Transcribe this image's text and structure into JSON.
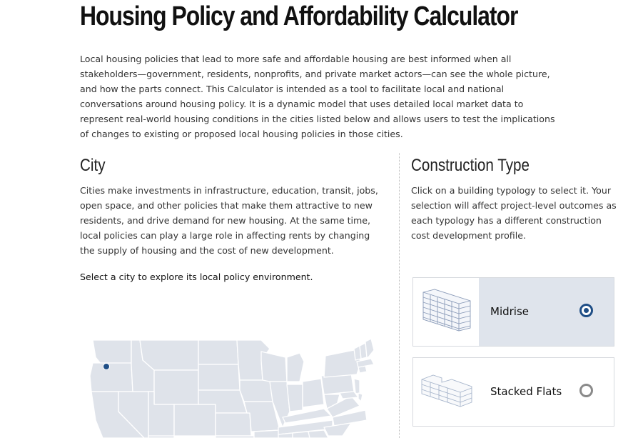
{
  "page": {
    "title": "Housing Policy and Affordability Calculator",
    "intro": "Local housing policies that lead to more safe and affordable housing are best informed when all stakeholders—government, residents, nonprofits, and private market actors—can see the whole picture, and how the parts connect. This Calculator is intended as a tool to facilitate local and national conversations around housing policy. It is a dynamic model that uses detailed local market data to represent real-world housing conditions in the cities listed below and allows users to test the implications of changes to existing or proposed local housing policies in those cities."
  },
  "city": {
    "heading": "City",
    "body": "Cities make investments in infrastructure, education, transit, jobs, open space, and other policies that make them attractive to new residents, and drive demand for new housing. At the same time, local policies can play a large role in affecting rents by changing the supply of housing and the cost of new development.",
    "prompt": "Select a city to explore its local policy environment.",
    "map_icon": "us-states-map",
    "marker_color": "#1f4e86"
  },
  "construction": {
    "heading": "Construction Type",
    "body": "Click on a building typology to select it. Your selection will affect project-level outcomes as each typology has a different construction cost development profile.",
    "options": [
      {
        "label": "Midrise",
        "selected": true,
        "icon": "midrise-building-icon"
      },
      {
        "label": "Stacked Flats",
        "selected": false,
        "icon": "stacked-flats-building-icon"
      }
    ]
  },
  "colors": {
    "accent": "#1f4e86",
    "selected_card_bg": "#dfe4ec",
    "map_fill": "#dfe3ea",
    "map_border": "#ffffff"
  }
}
